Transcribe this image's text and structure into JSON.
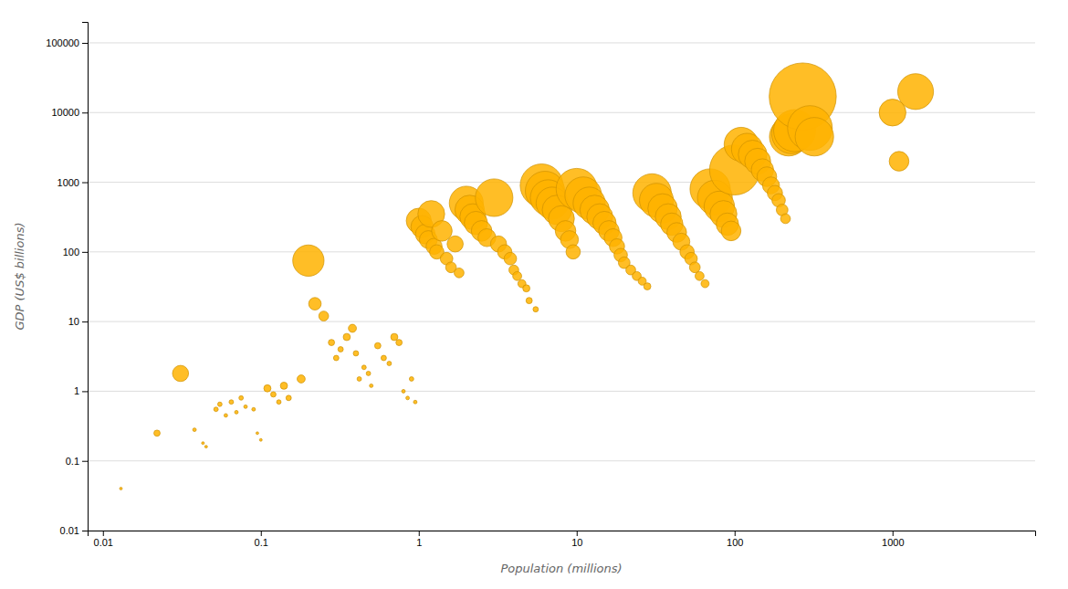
{
  "chart_data": {
    "type": "scatter",
    "xlabel": "Population (millions)",
    "ylabel": "GDP (US$ billions)",
    "log": true,
    "grid": "y",
    "color": "#FFB300",
    "xlim": [
      0.008,
      8000
    ],
    "ylim": [
      0.01,
      200000
    ],
    "xticks": [
      0.01,
      0.1,
      1,
      10,
      100,
      1000
    ],
    "yticks": [
      0.01,
      0.1,
      1,
      10,
      100,
      1000,
      10000,
      100000
    ],
    "x": [
      0.013,
      0.022,
      0.031,
      0.038,
      0.043,
      0.045,
      0.052,
      0.055,
      0.06,
      0.065,
      0.07,
      0.075,
      0.08,
      0.09,
      0.095,
      0.1,
      0.11,
      0.12,
      0.13,
      0.14,
      0.15,
      0.18,
      0.2,
      0.22,
      0.25,
      0.28,
      0.3,
      0.32,
      0.35,
      0.38,
      0.4,
      0.42,
      0.45,
      0.48,
      0.5,
      0.55,
      0.6,
      0.65,
      0.7,
      0.75,
      0.8,
      0.85,
      0.9,
      0.95,
      1.0,
      1.05,
      1.1,
      1.15,
      1.2,
      1.25,
      1.3,
      1.4,
      1.5,
      1.6,
      1.7,
      1.8,
      2.0,
      2.1,
      2.2,
      2.3,
      2.5,
      2.7,
      3.0,
      3.2,
      3.5,
      3.8,
      4.0,
      4.2,
      4.5,
      4.8,
      5.0,
      5.5,
      6.0,
      6.3,
      6.6,
      7.0,
      7.5,
      8.0,
      8.5,
      9.0,
      9.5,
      10,
      11,
      12,
      13,
      14,
      15,
      16,
      17,
      18,
      19,
      20,
      22,
      24,
      26,
      28,
      30,
      32,
      35,
      38,
      40,
      43,
      46,
      50,
      53,
      56,
      60,
      65,
      70,
      75,
      80,
      85,
      90,
      95,
      100,
      110,
      120,
      130,
      140,
      150,
      160,
      170,
      180,
      190,
      200,
      210,
      220,
      230,
      240,
      270,
      300,
      320,
      1000,
      1100,
      1400
    ],
    "values": [
      0.04,
      0.25,
      1.8,
      0.28,
      0.18,
      0.16,
      0.55,
      0.65,
      0.45,
      0.7,
      0.5,
      0.8,
      0.6,
      0.55,
      0.25,
      0.2,
      1.1,
      0.9,
      0.7,
      1.2,
      0.8,
      1.5,
      75,
      18,
      12,
      5,
      3,
      4,
      6,
      8,
      3.5,
      1.5,
      2.2,
      1.8,
      1.2,
      4.5,
      3.0,
      2.5,
      6.0,
      5.0,
      1.0,
      0.8,
      1.5,
      0.7,
      280,
      230,
      180,
      150,
      350,
      120,
      100,
      200,
      80,
      60,
      130,
      50,
      500,
      400,
      320,
      260,
      200,
      160,
      600,
      130,
      100,
      80,
      55,
      45,
      35,
      30,
      20,
      15,
      900,
      750,
      600,
      500,
      400,
      300,
      200,
      150,
      100,
      800,
      650,
      500,
      400,
      320,
      260,
      200,
      160,
      120,
      90,
      70,
      55,
      45,
      38,
      32,
      700,
      550,
      420,
      320,
      250,
      190,
      140,
      100,
      80,
      60,
      45,
      35,
      800,
      600,
      450,
      350,
      250,
      200,
      1500,
      3500,
      3000,
      2500,
      2000,
      1500,
      1200,
      900,
      700,
      550,
      400,
      300,
      4500,
      5000,
      5500,
      17000,
      6000,
      4500,
      10000,
      2000,
      20000
    ],
    "sizes": [
      3,
      7,
      18,
      4,
      3,
      3,
      5,
      5,
      4,
      5,
      4,
      5,
      4,
      4,
      3,
      3,
      8,
      6,
      5,
      8,
      6,
      9,
      35,
      14,
      11,
      7,
      6,
      6,
      8,
      9,
      6,
      5,
      5,
      5,
      4,
      7,
      6,
      5,
      8,
      7,
      4,
      4,
      5,
      4,
      28,
      25,
      22,
      20,
      30,
      18,
      16,
      23,
      14,
      12,
      18,
      11,
      38,
      33,
      29,
      26,
      23,
      20,
      42,
      18,
      16,
      14,
      11,
      10,
      9,
      8,
      7,
      6,
      48,
      44,
      40,
      36,
      33,
      29,
      23,
      20,
      16,
      46,
      41,
      36,
      33,
      29,
      26,
      23,
      20,
      17,
      15,
      13,
      11,
      10,
      9,
      8,
      43,
      38,
      33,
      29,
      25,
      22,
      19,
      16,
      14,
      12,
      10,
      9,
      45,
      39,
      34,
      30,
      25,
      22,
      56,
      38,
      35,
      32,
      29,
      25,
      22,
      19,
      17,
      15,
      13,
      11,
      43,
      45,
      47,
      75,
      50,
      43,
      30,
      22,
      40
    ]
  }
}
